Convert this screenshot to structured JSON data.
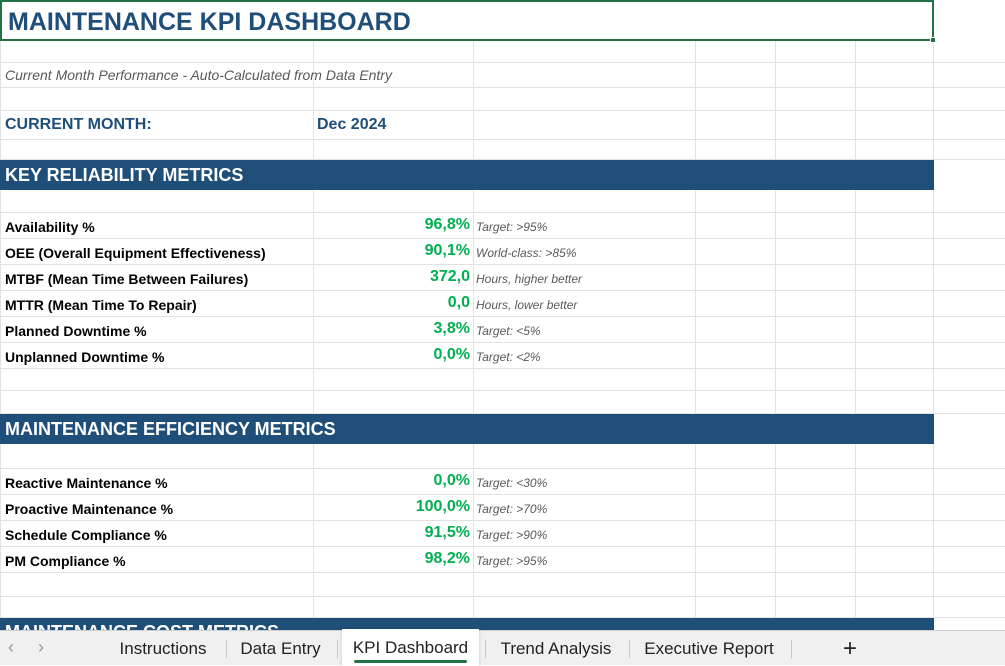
{
  "title": "MAINTENANCE KPI DASHBOARD",
  "subtitle": "Current Month Performance - Auto-Calculated from Data Entry",
  "current_month": {
    "label": "CURRENT MONTH:",
    "value": "Dec 2024"
  },
  "sections": [
    {
      "header": "KEY RELIABILITY METRICS",
      "rows": [
        {
          "label": "Availability %",
          "value": "96,8%",
          "note": "Target: >95%"
        },
        {
          "label": "OEE (Overall Equipment Effectiveness)",
          "value": "90,1%",
          "note": "World-class: >85%"
        },
        {
          "label": "MTBF (Mean Time Between Failures)",
          "value": "372,0",
          "note": "Hours, higher better"
        },
        {
          "label": "MTTR (Mean Time To Repair)",
          "value": "0,0",
          "note": "Hours, lower better"
        },
        {
          "label": "Planned Downtime %",
          "value": "3,8%",
          "note": "Target: <5%"
        },
        {
          "label": "Unplanned Downtime %",
          "value": "0,0%",
          "note": "Target: <2%"
        }
      ]
    },
    {
      "header": "MAINTENANCE EFFICIENCY METRICS",
      "rows": [
        {
          "label": "Reactive Maintenance %",
          "value": "0,0%",
          "note": "Target: <30%"
        },
        {
          "label": "Proactive Maintenance %",
          "value": "100,0%",
          "note": "Target: >70%"
        },
        {
          "label": "Schedule Compliance %",
          "value": "91,5%",
          "note": "Target: >90%"
        },
        {
          "label": "PM Compliance %",
          "value": "98,2%",
          "note": "Target: >95%"
        }
      ]
    },
    {
      "header": "MAINTENANCE COST METRICS",
      "rows": []
    }
  ],
  "tabs": [
    "Instructions",
    "Data Entry",
    "KPI Dashboard",
    "Trend Analysis",
    "Executive Report"
  ],
  "active_tab": "KPI Dashboard",
  "colors": {
    "header_bg": "#1f4e79",
    "value_green": "#00b050",
    "accent": "#217346"
  }
}
